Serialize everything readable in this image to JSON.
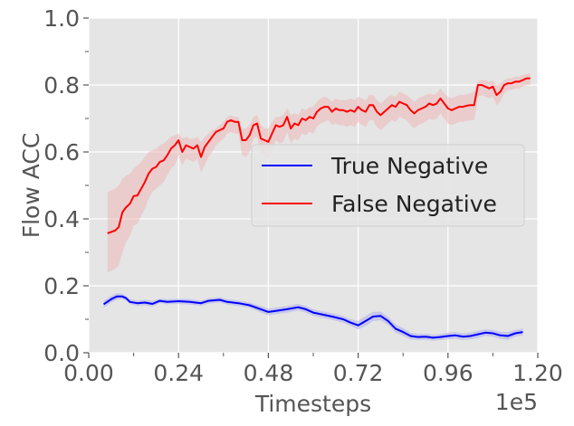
{
  "chart_data": {
    "type": "line",
    "title": "",
    "xlabel": "Timesteps",
    "ylabel": "Flow ACC",
    "x_offset_text": "1e5",
    "xlim": [
      0,
      1.2
    ],
    "ylim": [
      0,
      1.0
    ],
    "xticks": [
      0.0,
      0.24,
      0.48,
      0.72,
      0.96,
      1.2
    ],
    "xtick_labels": [
      "0.00",
      "0.24",
      "0.48",
      "0.72",
      "0.96",
      "1.20"
    ],
    "xminor": [
      0.12,
      0.36,
      0.6,
      0.84,
      1.08
    ],
    "yticks": [
      0.0,
      0.2,
      0.4,
      0.6,
      0.8,
      1.0
    ],
    "ytick_labels": [
      "0.0",
      "0.2",
      "0.4",
      "0.6",
      "0.8",
      "1.0"
    ],
    "yminor": [
      0.1,
      0.3,
      0.5,
      0.7,
      0.9
    ],
    "grid": true,
    "legend_position": "center-right",
    "series": [
      {
        "name": "True Negative",
        "color": "#0000ff",
        "band_color": "#aaaaee",
        "x": [
          0.04,
          0.06,
          0.075,
          0.09,
          0.1,
          0.11,
          0.13,
          0.15,
          0.17,
          0.19,
          0.21,
          0.24,
          0.27,
          0.3,
          0.32,
          0.35,
          0.37,
          0.4,
          0.43,
          0.46,
          0.48,
          0.5,
          0.53,
          0.56,
          0.58,
          0.6,
          0.62,
          0.65,
          0.68,
          0.7,
          0.72,
          0.74,
          0.76,
          0.78,
          0.8,
          0.82,
          0.84,
          0.86,
          0.88,
          0.9,
          0.92,
          0.94,
          0.96,
          0.98,
          1.0,
          1.02,
          1.04,
          1.06,
          1.08,
          1.1,
          1.12,
          1.14,
          1.16
        ],
        "values": [
          0.145,
          0.16,
          0.168,
          0.168,
          0.163,
          0.152,
          0.148,
          0.15,
          0.146,
          0.155,
          0.152,
          0.154,
          0.152,
          0.148,
          0.155,
          0.158,
          0.152,
          0.148,
          0.142,
          0.13,
          0.122,
          0.125,
          0.13,
          0.136,
          0.13,
          0.12,
          0.115,
          0.108,
          0.1,
          0.09,
          0.082,
          0.095,
          0.108,
          0.11,
          0.095,
          0.072,
          0.062,
          0.05,
          0.047,
          0.048,
          0.045,
          0.047,
          0.05,
          0.052,
          0.048,
          0.05,
          0.055,
          0.06,
          0.058,
          0.052,
          0.05,
          0.058,
          0.062
        ],
        "upper": [
          0.155,
          0.17,
          0.178,
          0.176,
          0.17,
          0.16,
          0.156,
          0.158,
          0.155,
          0.162,
          0.16,
          0.162,
          0.16,
          0.156,
          0.163,
          0.166,
          0.16,
          0.156,
          0.15,
          0.14,
          0.132,
          0.135,
          0.14,
          0.146,
          0.14,
          0.13,
          0.125,
          0.118,
          0.11,
          0.1,
          0.095,
          0.11,
          0.122,
          0.123,
          0.107,
          0.085,
          0.074,
          0.06,
          0.056,
          0.057,
          0.054,
          0.056,
          0.06,
          0.062,
          0.058,
          0.06,
          0.066,
          0.07,
          0.068,
          0.063,
          0.062,
          0.068,
          0.072
        ],
        "lower": [
          0.135,
          0.15,
          0.158,
          0.16,
          0.155,
          0.145,
          0.14,
          0.142,
          0.138,
          0.148,
          0.145,
          0.146,
          0.144,
          0.14,
          0.147,
          0.15,
          0.144,
          0.14,
          0.134,
          0.12,
          0.112,
          0.115,
          0.12,
          0.126,
          0.12,
          0.11,
          0.105,
          0.098,
          0.09,
          0.08,
          0.07,
          0.08,
          0.095,
          0.097,
          0.083,
          0.06,
          0.05,
          0.04,
          0.038,
          0.039,
          0.036,
          0.038,
          0.04,
          0.042,
          0.038,
          0.04,
          0.044,
          0.05,
          0.048,
          0.041,
          0.038,
          0.048,
          0.052
        ]
      },
      {
        "name": "False Negative",
        "color": "#ff0000",
        "band_color": "#f0b4b4",
        "x": [
          0.05,
          0.07,
          0.08,
          0.09,
          0.1,
          0.11,
          0.12,
          0.13,
          0.14,
          0.15,
          0.16,
          0.17,
          0.18,
          0.19,
          0.2,
          0.21,
          0.22,
          0.23,
          0.24,
          0.25,
          0.26,
          0.27,
          0.28,
          0.29,
          0.3,
          0.31,
          0.32,
          0.33,
          0.34,
          0.35,
          0.36,
          0.37,
          0.38,
          0.39,
          0.4,
          0.41,
          0.42,
          0.43,
          0.44,
          0.45,
          0.46,
          0.47,
          0.48,
          0.49,
          0.5,
          0.51,
          0.52,
          0.53,
          0.54,
          0.55,
          0.56,
          0.57,
          0.58,
          0.59,
          0.6,
          0.61,
          0.62,
          0.63,
          0.64,
          0.65,
          0.66,
          0.67,
          0.68,
          0.69,
          0.7,
          0.71,
          0.72,
          0.73,
          0.74,
          0.75,
          0.76,
          0.77,
          0.78,
          0.79,
          0.8,
          0.81,
          0.82,
          0.83,
          0.84,
          0.85,
          0.86,
          0.87,
          0.88,
          0.89,
          0.9,
          0.91,
          0.92,
          0.93,
          0.94,
          0.95,
          0.96,
          0.97,
          0.98,
          0.99,
          1.0,
          1.01,
          1.02,
          1.03,
          1.04,
          1.05,
          1.06,
          1.07,
          1.08,
          1.09,
          1.1,
          1.11,
          1.12,
          1.13,
          1.14,
          1.15,
          1.16,
          1.17,
          1.18
        ],
        "values": [
          0.357,
          0.365,
          0.375,
          0.42,
          0.435,
          0.445,
          0.468,
          0.47,
          0.49,
          0.51,
          0.535,
          0.55,
          0.555,
          0.57,
          0.575,
          0.59,
          0.61,
          0.62,
          0.635,
          0.6,
          0.62,
          0.615,
          0.61,
          0.62,
          0.585,
          0.615,
          0.63,
          0.645,
          0.66,
          0.665,
          0.67,
          0.69,
          0.695,
          0.69,
          0.69,
          0.635,
          0.635,
          0.65,
          0.68,
          0.685,
          0.64,
          0.635,
          0.63,
          0.655,
          0.68,
          0.675,
          0.68,
          0.705,
          0.67,
          0.685,
          0.68,
          0.7,
          0.695,
          0.705,
          0.7,
          0.72,
          0.73,
          0.735,
          0.735,
          0.72,
          0.73,
          0.725,
          0.725,
          0.72,
          0.725,
          0.72,
          0.735,
          0.725,
          0.72,
          0.74,
          0.74,
          0.72,
          0.71,
          0.72,
          0.73,
          0.74,
          0.735,
          0.75,
          0.745,
          0.74,
          0.725,
          0.715,
          0.725,
          0.73,
          0.735,
          0.745,
          0.74,
          0.745,
          0.76,
          0.745,
          0.73,
          0.725,
          0.73,
          0.735,
          0.735,
          0.738,
          0.74,
          0.74,
          0.8,
          0.8,
          0.795,
          0.79,
          0.795,
          0.77,
          0.78,
          0.8,
          0.805,
          0.805,
          0.81,
          0.81,
          0.815,
          0.82,
          0.82
        ],
        "upper": [
          0.48,
          0.49,
          0.5,
          0.52,
          0.53,
          0.535,
          0.55,
          0.56,
          0.57,
          0.585,
          0.6,
          0.605,
          0.61,
          0.62,
          0.625,
          0.635,
          0.645,
          0.65,
          0.655,
          0.64,
          0.645,
          0.64,
          0.64,
          0.645,
          0.63,
          0.645,
          0.655,
          0.665,
          0.67,
          0.68,
          0.69,
          0.705,
          0.71,
          0.705,
          0.705,
          0.67,
          0.67,
          0.68,
          0.705,
          0.71,
          0.68,
          0.67,
          0.67,
          0.69,
          0.705,
          0.705,
          0.71,
          0.73,
          0.71,
          0.715,
          0.71,
          0.73,
          0.725,
          0.735,
          0.735,
          0.75,
          0.76,
          0.765,
          0.76,
          0.75,
          0.76,
          0.755,
          0.755,
          0.755,
          0.76,
          0.755,
          0.765,
          0.76,
          0.755,
          0.77,
          0.77,
          0.755,
          0.745,
          0.755,
          0.765,
          0.77,
          0.765,
          0.78,
          0.775,
          0.77,
          0.76,
          0.75,
          0.76,
          0.765,
          0.77,
          0.775,
          0.77,
          0.775,
          0.79,
          0.775,
          0.765,
          0.76,
          0.765,
          0.77,
          0.77,
          0.772,
          0.775,
          0.78,
          0.81,
          0.815,
          0.815,
          0.81,
          0.815,
          0.8,
          0.805,
          0.815,
          0.82,
          0.82,
          0.825,
          0.825,
          0.83,
          0.833,
          0.835
        ],
        "lower": [
          0.24,
          0.25,
          0.26,
          0.3,
          0.33,
          0.35,
          0.38,
          0.385,
          0.41,
          0.43,
          0.46,
          0.48,
          0.49,
          0.5,
          0.51,
          0.53,
          0.55,
          0.56,
          0.59,
          0.56,
          0.58,
          0.575,
          0.57,
          0.58,
          0.54,
          0.56,
          0.585,
          0.6,
          0.62,
          0.63,
          0.64,
          0.655,
          0.66,
          0.655,
          0.655,
          0.59,
          0.585,
          0.6,
          0.64,
          0.645,
          0.595,
          0.59,
          0.58,
          0.605,
          0.635,
          0.625,
          0.63,
          0.66,
          0.625,
          0.64,
          0.635,
          0.655,
          0.65,
          0.66,
          0.655,
          0.675,
          0.685,
          0.69,
          0.695,
          0.68,
          0.685,
          0.68,
          0.68,
          0.675,
          0.68,
          0.675,
          0.69,
          0.68,
          0.675,
          0.695,
          0.695,
          0.675,
          0.665,
          0.675,
          0.685,
          0.695,
          0.69,
          0.705,
          0.7,
          0.695,
          0.68,
          0.67,
          0.68,
          0.685,
          0.69,
          0.7,
          0.695,
          0.7,
          0.715,
          0.7,
          0.685,
          0.68,
          0.685,
          0.69,
          0.69,
          0.693,
          0.695,
          0.695,
          0.765,
          0.77,
          0.765,
          0.76,
          0.765,
          0.74,
          0.75,
          0.775,
          0.785,
          0.785,
          0.79,
          0.79,
          0.795,
          0.8,
          0.8
        ]
      }
    ]
  }
}
